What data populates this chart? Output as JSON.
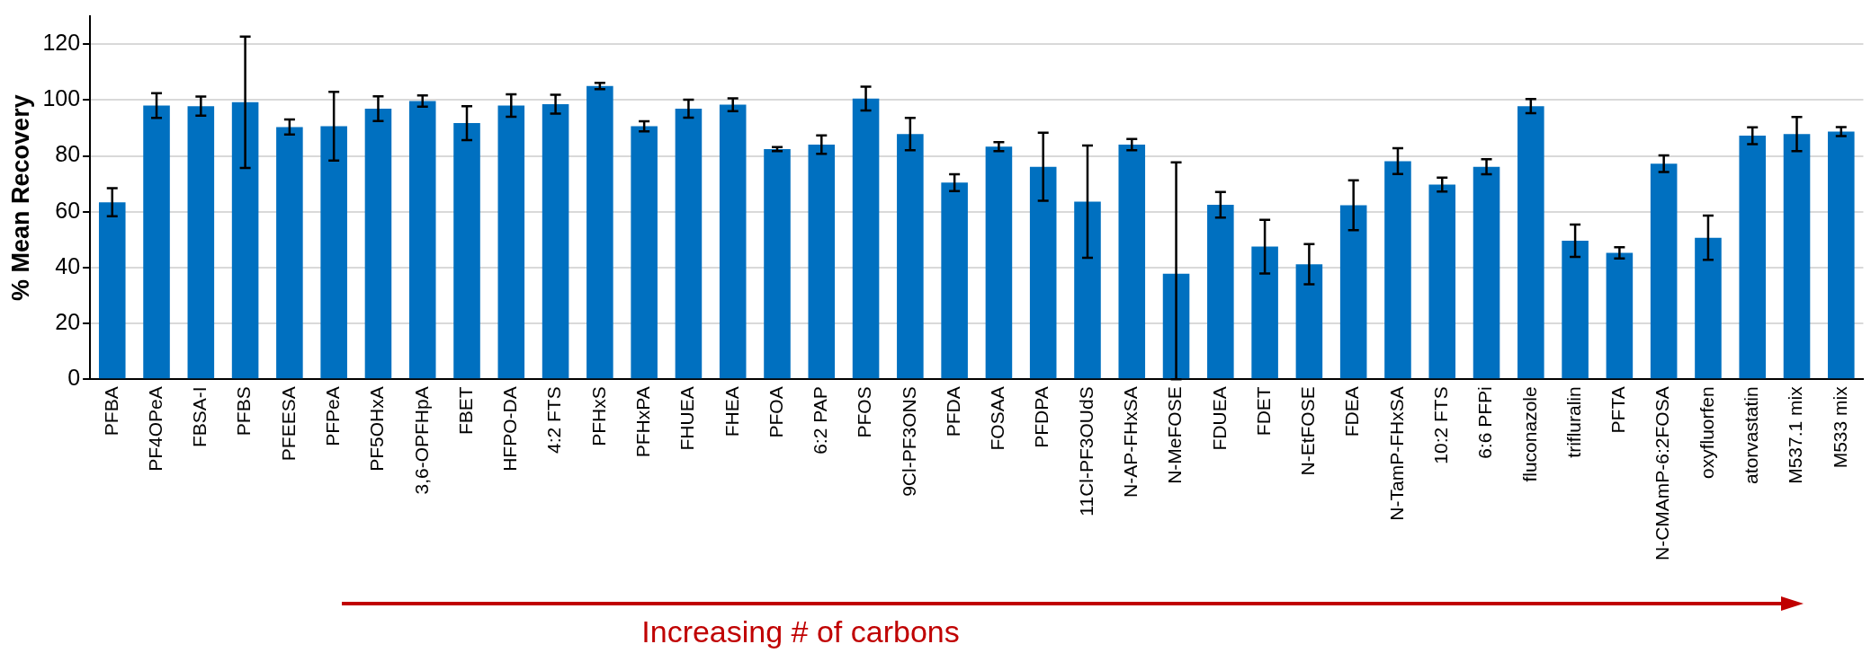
{
  "chart_data": {
    "type": "bar",
    "ylabel": "% Mean Recovery",
    "categories": [
      "PFBA",
      "PF4OPeA",
      "FBSA-I",
      "PFBS",
      "PFEESA",
      "PFPeA",
      "PF5OHxA",
      "3,6-OPFHpA",
      "FBET",
      "HFPO-DA",
      "4:2 FTS",
      "PFHxS",
      "PFHxPA",
      "FHUEA",
      "FHEA",
      "PFOA",
      "6:2 PAP",
      "PFOS",
      "9Cl-PF3ONS",
      "PFDA",
      "FOSAA",
      "PFDPA",
      "11Cl-PF3OUdS",
      "N-AP-FHxSA",
      "N-MeFOSE",
      "FDUEA",
      "FDET",
      "N-EtFOSE",
      "FDEA",
      "N-TamP-FHxSA",
      "10:2 FTS",
      "6:6 PFPi",
      "fluconazole",
      "trifluralin",
      "PFTA",
      "N-CMAmP-6:2FOSA",
      "oxyfluorfen",
      "atorvastatin",
      "M537.1 mix",
      "M533 mix"
    ],
    "values": [
      63.4,
      98,
      97.8,
      99.2,
      90.3,
      90.6,
      96.9,
      99.6,
      91.7,
      98,
      98.5,
      105,
      90.6,
      96.9,
      98.3,
      82.4,
      84,
      100.5,
      87.8,
      70.4,
      83.3,
      76.1,
      63.6,
      84,
      37.8,
      62.5,
      47.5,
      41.2,
      62.3,
      78.1,
      69.7,
      76.1,
      97.8,
      49.6,
      45.3,
      77.2,
      50.7,
      87.2,
      87.8,
      88.7
    ],
    "errors": [
      5,
      4.4,
      3.4,
      23.5,
      2.7,
      12.3,
      4.4,
      2,
      6.1,
      4,
      3.4,
      1.1,
      1.8,
      3.2,
      2.3,
      0.7,
      3.3,
      4.3,
      5.8,
      3,
      1.6,
      12.2,
      20.1,
      2,
      [
        0,
        77.7
      ],
      4.6,
      9.6,
      7.2,
      8.9,
      4.6,
      2.5,
      2.7,
      2.5,
      5.8,
      2,
      3,
      7.9,
      3,
      6.1,
      1.6
    ],
    "color": "#0070c0",
    "ylim": [
      0,
      130
    ],
    "yticks": [
      0,
      20,
      40,
      60,
      80,
      100,
      120
    ],
    "grid": "y",
    "annotations": [
      "Increasing # of carbons"
    ]
  }
}
